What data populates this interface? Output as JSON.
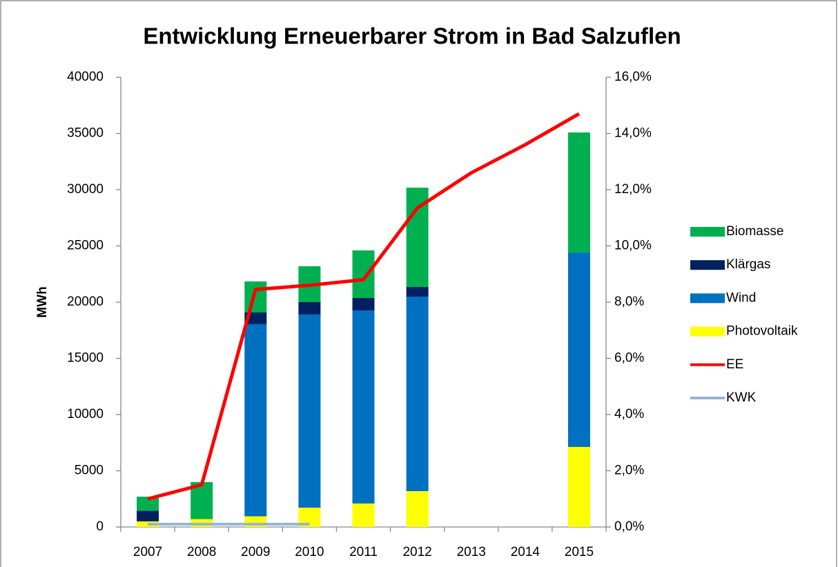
{
  "chart_data": {
    "type": "bar",
    "stacked": true,
    "title": "Entwicklung Erneuerbarer Strom in Bad Salzuflen",
    "y_label": "MWh",
    "categories": [
      "2007",
      "2008",
      "2009",
      "2010",
      "2011",
      "2012",
      "2013",
      "2014",
      "2015"
    ],
    "series": [
      {
        "name": "Photovoltaik",
        "type": "bar",
        "color": "#ffff00",
        "values": [
          500,
          700,
          950,
          1720,
          2090,
          3190,
          null,
          null,
          7120
        ]
      },
      {
        "name": "Wind",
        "type": "bar",
        "color": "#0070c0",
        "values": [
          0,
          0,
          17090,
          17180,
          17170,
          17300,
          null,
          null,
          17300
        ]
      },
      {
        "name": "Klärgas",
        "type": "bar",
        "color": "#002060",
        "values": [
          950,
          0,
          1040,
          1100,
          1110,
          860,
          null,
          null,
          0
        ]
      },
      {
        "name": "Biomasse",
        "type": "bar",
        "color": "#00b050",
        "values": [
          1250,
          3300,
          2760,
          3190,
          4230,
          8830,
          null,
          null,
          10670
        ]
      },
      {
        "name": "EE",
        "type": "line",
        "axis": "y2",
        "color": "#ff0000",
        "values": [
          1.0,
          1.5,
          8.45,
          8.6,
          8.8,
          11.35,
          12.6,
          13.6,
          14.7
        ]
      },
      {
        "name": "KWK",
        "type": "line",
        "axis": "y2",
        "color": "#95b3d7",
        "values": [
          0.1,
          0.1,
          0.1,
          0.1,
          null,
          null,
          null,
          null,
          null
        ]
      }
    ],
    "legend_order": [
      3,
      2,
      1,
      0,
      4,
      5
    ],
    "ylim": [
      0,
      40000
    ],
    "yticks": [
      0,
      5000,
      10000,
      15000,
      20000,
      25000,
      30000,
      35000,
      40000
    ],
    "y2lim": [
      0,
      16
    ],
    "y2ticks": [
      {
        "value": 0,
        "label": "0,0%"
      },
      {
        "value": 2,
        "label": "2,0%"
      },
      {
        "value": 4,
        "label": "4,0%"
      },
      {
        "value": 6,
        "label": "6,0%"
      },
      {
        "value": 8,
        "label": "8,0%"
      },
      {
        "value": 10,
        "label": "10,0%"
      },
      {
        "value": 12,
        "label": "12,0%"
      },
      {
        "value": 14,
        "label": "14,0%"
      },
      {
        "value": 16,
        "label": "16,0%"
      }
    ],
    "legend": "right",
    "grid": false
  }
}
